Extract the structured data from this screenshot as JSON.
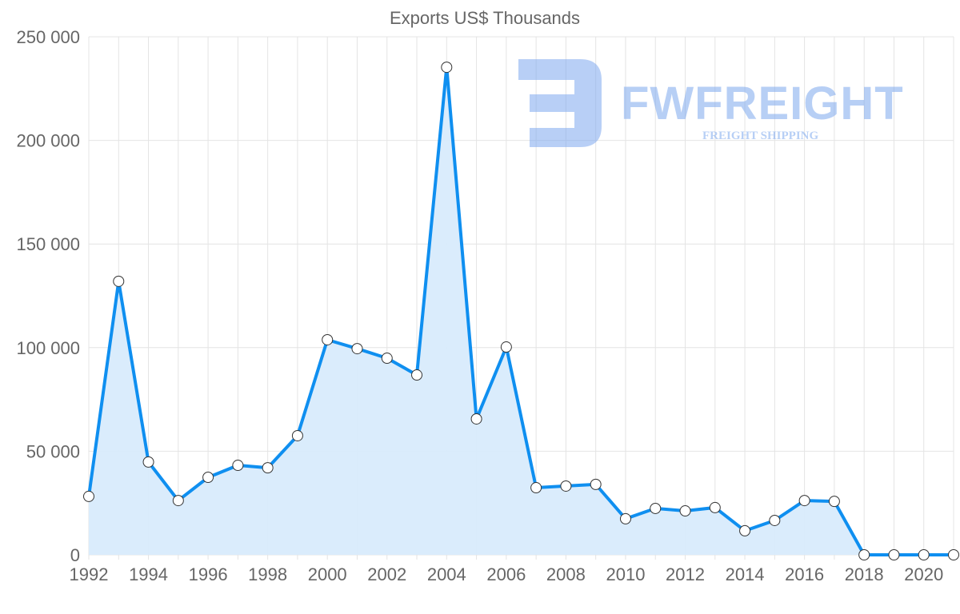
{
  "chart_data": {
    "type": "area",
    "title": "Exports US$ Thousands",
    "xlabel": "",
    "ylabel": "",
    "x": [
      1992,
      1993,
      1994,
      1995,
      1996,
      1997,
      1998,
      1999,
      2000,
      2001,
      2002,
      2003,
      2004,
      2005,
      2006,
      2007,
      2008,
      2009,
      2010,
      2011,
      2012,
      2013,
      2014,
      2015,
      2016,
      2017,
      2018,
      2019,
      2020,
      2021
    ],
    "values": [
      28200,
      132000,
      44800,
      26200,
      37400,
      43200,
      42000,
      57500,
      103800,
      99500,
      94900,
      86800,
      235300,
      65600,
      100300,
      32400,
      33200,
      34000,
      17400,
      22400,
      21200,
      22800,
      11600,
      16600,
      26200,
      25800,
      0,
      0,
      0,
      0
    ],
    "ylim": [
      0,
      250000
    ],
    "xlim": [
      1992,
      2021
    ],
    "y_ticks": [
      "0",
      "50 000",
      "100 000",
      "150 000",
      "200 000",
      "250 000"
    ],
    "x_ticks": [
      "1992",
      "1994",
      "1996",
      "1998",
      "2000",
      "2002",
      "2004",
      "2006",
      "2008",
      "2010",
      "2012",
      "2014",
      "2016",
      "2018",
      "2020"
    ],
    "grid": true,
    "line_color": "#0f8ff0",
    "fill_color": "#d8ebfc"
  },
  "watermark": {
    "brand": "FWFREIGHT",
    "tagline": "FREIGHT SHIPPING",
    "color": "#7ea8ee"
  }
}
